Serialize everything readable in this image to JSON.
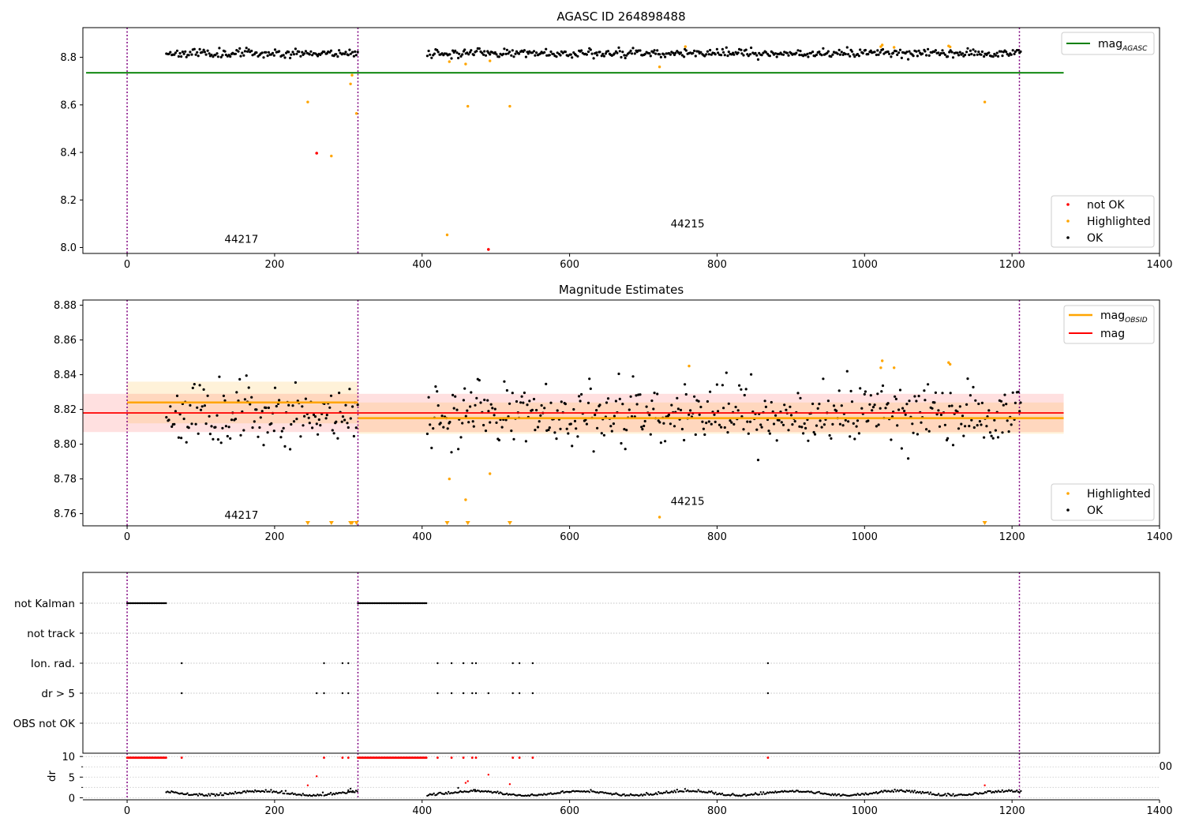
{
  "chart_data": [
    {
      "type": "scatter",
      "title": "AGASC ID 264898488",
      "xlabel": "",
      "ylabel": "",
      "xlim": [
        -60,
        1400
      ],
      "ylim": [
        7.975,
        8.925
      ],
      "x_ticks": [
        0,
        200,
        400,
        600,
        800,
        1000,
        1200,
        1400
      ],
      "y_ticks": [
        8.0,
        8.2,
        8.4,
        8.6,
        8.8
      ],
      "grid": false,
      "obsid_boundaries": [
        0,
        313,
        1210
      ],
      "obsid_labels": [
        {
          "text": "44217",
          "x": 155,
          "y": 8.02
        },
        {
          "text": "44215",
          "x": 760,
          "y": 8.085
        }
      ],
      "lines": [
        {
          "name": "mag_AGASC",
          "label_main": "mag",
          "label_sub": "AGASC",
          "y": 8.735,
          "x": [
            0,
            1270
          ],
          "color": "#008000"
        }
      ],
      "legend_top": "top-right",
      "legend_bottom": "bottom-right",
      "series": [
        {
          "name": "not OK",
          "color": "#ff0000",
          "points": [
            [
              257,
              8.397
            ],
            [
              490,
              7.992
            ]
          ]
        },
        {
          "name": "Highlighted",
          "color": "#ffa500",
          "points": [
            [
              245,
              8.612
            ],
            [
              277,
              8.385
            ],
            [
              303,
              8.688
            ],
            [
              305,
              8.725
            ],
            [
              311,
              8.564
            ],
            [
              434,
              8.053
            ],
            [
              437,
              8.782
            ],
            [
              459,
              8.772
            ],
            [
              462,
              8.594
            ],
            [
              492,
              8.785
            ],
            [
              519,
              8.594
            ],
            [
              722,
              8.76
            ],
            [
              757,
              8.845
            ],
            [
              1022,
              8.845
            ],
            [
              1024,
              8.852
            ],
            [
              1040,
              8.842
            ],
            [
              1114,
              8.848
            ],
            [
              1116,
              8.844
            ],
            [
              1163,
              8.612
            ]
          ]
        },
        {
          "name": "OK",
          "color": "#000000",
          "generated": {
            "segments": [
              [
                53,
                313
              ],
              [
                407,
                1212
              ]
            ],
            "step": 1.8,
            "mean": 8.818,
            "sd": 0.009,
            "seed": 11
          }
        }
      ]
    },
    {
      "type": "scatter",
      "title": "Magnitude Estimates",
      "xlabel": "",
      "ylabel": "",
      "xlim": [
        -60,
        1400
      ],
      "ylim": [
        8.753,
        8.883
      ],
      "x_ticks": [
        0,
        200,
        400,
        600,
        800,
        1000,
        1200,
        1400
      ],
      "y_ticks": [
        8.76,
        8.78,
        8.8,
        8.82,
        8.84,
        8.86,
        8.88
      ],
      "grid": false,
      "obsid_boundaries": [
        0,
        313,
        1210
      ],
      "obsid_labels": [
        {
          "text": "44217",
          "x": 155,
          "y": 8.757
        },
        {
          "text": "44215",
          "x": 760,
          "y": 8.765
        }
      ],
      "lines": [
        {
          "name": "mag_OBSID",
          "label_main": "mag",
          "label_sub": "OBSID",
          "segments": [
            {
              "x": [
                0,
                313
              ],
              "y": 8.824,
              "band": [
                8.812,
                8.836
              ]
            },
            {
              "x": [
                313,
                1270
              ],
              "y": 8.815,
              "band": [
                8.806,
                8.824
              ]
            }
          ],
          "color": "#ffa500"
        },
        {
          "name": "mag",
          "label_main": "mag",
          "y": 8.818,
          "x": [
            -60,
            1270
          ],
          "band": [
            8.807,
            8.829
          ],
          "color": "#ff0000"
        }
      ],
      "legend_top": "top-right",
      "legend_bottom": "bottom-right",
      "series": [
        {
          "name": "Highlighted",
          "color": "#ffa500",
          "points": [
            [
              437,
              8.78
            ],
            [
              459,
              8.768
            ],
            [
              492,
              8.783
            ],
            [
              722,
              8.758
            ],
            [
              762,
              8.845
            ],
            [
              1022,
              8.844
            ],
            [
              1024,
              8.848
            ],
            [
              1040,
              8.844
            ],
            [
              1114,
              8.847
            ],
            [
              1116,
              8.846
            ]
          ],
          "offscale_markers_x": [
            245,
            277,
            303,
            305,
            311,
            434,
            462,
            519,
            1163
          ]
        },
        {
          "name": "OK",
          "color": "#000000",
          "generated": {
            "segments": [
              [
                53,
                313
              ],
              [
                407,
                1212
              ]
            ],
            "step": 1.8,
            "mean": 8.818,
            "sd": 0.009,
            "seed": 11
          }
        }
      ]
    },
    {
      "type": "scatter",
      "title": "",
      "xlabel": "",
      "ylabel": "",
      "xlim": [
        -60,
        1400
      ],
      "categories": [
        "not Kalman",
        "not track",
        "Ion. rad.",
        "dr > 5",
        "OBS not OK"
      ],
      "grid": true,
      "obsid_boundaries": [
        0,
        313,
        1210
      ],
      "flags": {
        "not Kalman": {
          "ranges": [
            [
              0,
              53
            ],
            [
              313,
              407
            ]
          ]
        },
        "not track": {
          "points": []
        },
        "Ion. rad.": {
          "points": [
            74,
            267,
            292,
            300,
            421,
            440,
            456,
            468,
            473,
            523,
            532,
            550,
            869
          ]
        },
        "dr > 5": {
          "points": [
            74,
            257,
            267,
            292,
            300,
            421,
            440,
            456,
            468,
            473,
            490,
            523,
            532,
            550,
            869
          ]
        },
        "OBS not OK": {
          "points": []
        }
      }
    },
    {
      "type": "scatter",
      "title": "",
      "xlabel": "",
      "ylabel": "dr",
      "xlim": [
        -60,
        1400
      ],
      "ylim": [
        0,
        10
      ],
      "y_ticks": [
        0,
        5,
        10
      ],
      "obsid_boundaries": [
        0,
        313,
        1210
      ],
      "red_points": {
        "ranges": [
          [
            0,
            53
          ],
          [
            313,
            407
          ]
        ],
        "points": [
          74,
          267,
          292,
          300,
          421,
          440,
          456,
          468,
          473,
          523,
          532,
          550,
          869
        ],
        "y": 9.7
      },
      "red_scatter": [
        [
          245,
          3.0
        ],
        [
          257,
          5.2
        ],
        [
          459,
          3.6
        ],
        [
          462,
          4.0
        ],
        [
          490,
          5.6
        ],
        [
          519,
          3.3
        ],
        [
          1163,
          3.0
        ]
      ],
      "black_points": {
        "generated": {
          "segments": [
            [
              53,
              313
            ],
            [
              407,
              600
            ],
            [
              600,
              1212
            ]
          ],
          "step": 1.8,
          "seed": 5
        }
      },
      "x_ticks": [
        0,
        200,
        400,
        600,
        800,
        1000,
        1200,
        1400
      ],
      "clipped_tick_label": "00"
    }
  ]
}
